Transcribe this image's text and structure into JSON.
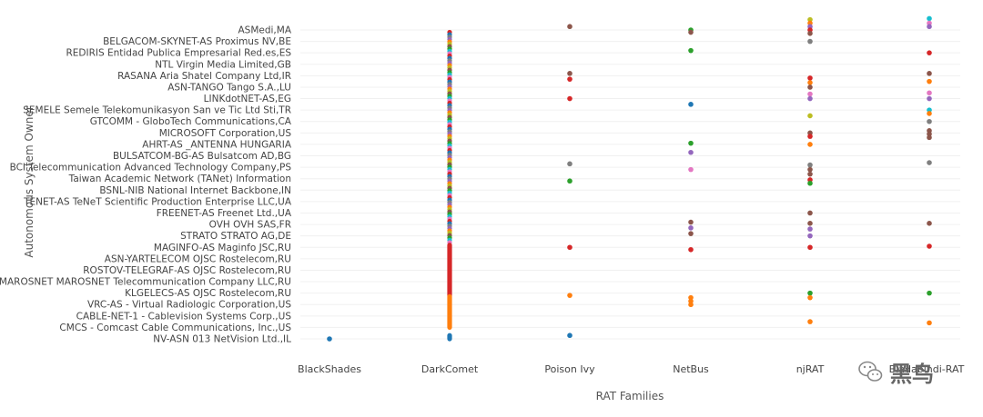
{
  "chart_data": {
    "type": "scatter",
    "title": "",
    "xlabel": "RAT Families",
    "ylabel": "Autonomous System Owner",
    "grid": true,
    "legend": "none",
    "categories": [
      "BlackShades",
      "DarkComet",
      "Poison Ivy",
      "NetBus",
      "njRAT",
      "Bladabindi-RAT"
    ],
    "y_categories": [
      "ASMedi,MA",
      "BELGACOM-SKYNET-AS Proximus NV,BE",
      "REDIRIS Entidad Publica Empresarial Red.es,ES",
      "NTL Virgin Media Limited,GB",
      "RASANA Aria Shatel Company Ltd,IR",
      "ASN-TANGO Tango S.A.,LU",
      "LINKdotNET-AS,EG",
      "SEMELE Semele Telekomunikasyon San ve Tic Ltd Sti,TR",
      "GTCOMM - GloboTech Communications,CA",
      "MICROSOFT Corporation,US",
      "AHRT-AS _ANTENNA HUNGARIA",
      "BULSATCOM-BG-AS Bulsatcom AD,BG",
      "BCI Telecommunication Advanced Technology Company,PS",
      "Taiwan Academic Network (TANet) Information",
      "BSNL-NIB National Internet Backbone,IN",
      "TENET-AS TeNeT Scientific Production Enterprise LLC,UA",
      "FREENET-AS Freenet Ltd.,UA",
      "OVH OVH SAS,FR",
      "STRATO STRATO AG,DE",
      "MAGINFO-AS Maginfo JSC,RU",
      "ASN-YARTELECOM OJSC Rostelecom,RU",
      "ROSTOV-TELEGRAF-AS OJSC Rostelecom,RU",
      "AS-MAROSNET MAROSNET Telecommunication Company LLC,RU",
      "KLGELECS-AS OJSC Rostelecom,RU",
      "VRC-AS - Virtual Radiologic Corporation,US",
      "CABLE-NET-1 - Cablevision Systems Corp.,US",
      "CMCS - Comcast Cable Communications, Inc.,US",
      "NV-ASN 013 NetVision Ltd.,IL"
    ],
    "y_index_range": [
      0,
      27
    ],
    "palette": {
      "blue": "#1f77b4",
      "orange": "#ff7f0e",
      "green": "#2ca02c",
      "red": "#d62728",
      "purple": "#9467bd",
      "brown": "#8c564b",
      "pink": "#e377c2",
      "gray": "#7f7f7f",
      "olive": "#bcbd22",
      "cyan": "#17becf"
    },
    "points": [
      {
        "x": "BlackShades",
        "y": 27.0,
        "color": "#1f77b4"
      },
      {
        "x": "Poison Ivy",
        "y": -0.3,
        "color": "#8c564b"
      },
      {
        "x": "Poison Ivy",
        "y": 3.8,
        "color": "#8c564b"
      },
      {
        "x": "Poison Ivy",
        "y": 4.3,
        "color": "#d62728"
      },
      {
        "x": "Poison Ivy",
        "y": 6.0,
        "color": "#d62728"
      },
      {
        "x": "Poison Ivy",
        "y": 11.7,
        "color": "#7f7f7f"
      },
      {
        "x": "Poison Ivy",
        "y": 13.2,
        "color": "#2ca02c"
      },
      {
        "x": "Poison Ivy",
        "y": 19.0,
        "color": "#d62728"
      },
      {
        "x": "Poison Ivy",
        "y": 23.2,
        "color": "#ff7f0e"
      },
      {
        "x": "Poison Ivy",
        "y": 26.7,
        "color": "#1f77b4"
      },
      {
        "x": "NetBus",
        "y": 0.0,
        "color": "#2ca02c"
      },
      {
        "x": "NetBus",
        "y": 0.2,
        "color": "#8c564b"
      },
      {
        "x": "NetBus",
        "y": 1.8,
        "color": "#2ca02c"
      },
      {
        "x": "NetBus",
        "y": 6.5,
        "color": "#1f77b4"
      },
      {
        "x": "NetBus",
        "y": 9.9,
        "color": "#2ca02c"
      },
      {
        "x": "NetBus",
        "y": 10.7,
        "color": "#9467bd"
      },
      {
        "x": "NetBus",
        "y": 12.2,
        "color": "#e377c2"
      },
      {
        "x": "NetBus",
        "y": 16.8,
        "color": "#8c564b"
      },
      {
        "x": "NetBus",
        "y": 17.3,
        "color": "#9467bd"
      },
      {
        "x": "NetBus",
        "y": 17.8,
        "color": "#8c564b"
      },
      {
        "x": "NetBus",
        "y": 19.2,
        "color": "#d62728"
      },
      {
        "x": "NetBus",
        "y": 23.4,
        "color": "#ff7f0e"
      },
      {
        "x": "NetBus",
        "y": 23.7,
        "color": "#ff7f0e"
      },
      {
        "x": "NetBus",
        "y": 24.0,
        "color": "#ff7f0e"
      },
      {
        "x": "njRAT",
        "y": -0.9,
        "color": "#bcbd22"
      },
      {
        "x": "njRAT",
        "y": -0.6,
        "color": "#ff7f0e"
      },
      {
        "x": "njRAT",
        "y": -0.3,
        "color": "#9467bd"
      },
      {
        "x": "njRAT",
        "y": 0.0,
        "color": "#d62728"
      },
      {
        "x": "njRAT",
        "y": 0.3,
        "color": "#8c564b"
      },
      {
        "x": "njRAT",
        "y": 1.0,
        "color": "#7f7f7f"
      },
      {
        "x": "njRAT",
        "y": 4.2,
        "color": "#d62728"
      },
      {
        "x": "njRAT",
        "y": 4.6,
        "color": "#ff7f0e"
      },
      {
        "x": "njRAT",
        "y": 5.0,
        "color": "#8c564b"
      },
      {
        "x": "njRAT",
        "y": 5.6,
        "color": "#e377c2"
      },
      {
        "x": "njRAT",
        "y": 6.0,
        "color": "#9467bd"
      },
      {
        "x": "njRAT",
        "y": 7.5,
        "color": "#bcbd22"
      },
      {
        "x": "njRAT",
        "y": 9.0,
        "color": "#8c564b"
      },
      {
        "x": "njRAT",
        "y": 9.3,
        "color": "#d62728"
      },
      {
        "x": "njRAT",
        "y": 10.0,
        "color": "#ff7f0e"
      },
      {
        "x": "njRAT",
        "y": 11.8,
        "color": "#7f7f7f"
      },
      {
        "x": "njRAT",
        "y": 12.2,
        "color": "#8c564b"
      },
      {
        "x": "njRAT",
        "y": 12.6,
        "color": "#8c564b"
      },
      {
        "x": "njRAT",
        "y": 13.1,
        "color": "#d62728"
      },
      {
        "x": "njRAT",
        "y": 13.4,
        "color": "#2ca02c"
      },
      {
        "x": "njRAT",
        "y": 16.0,
        "color": "#8c564b"
      },
      {
        "x": "njRAT",
        "y": 16.9,
        "color": "#8c564b"
      },
      {
        "x": "njRAT",
        "y": 17.4,
        "color": "#9467bd"
      },
      {
        "x": "njRAT",
        "y": 18.0,
        "color": "#9467bd"
      },
      {
        "x": "njRAT",
        "y": 19.0,
        "color": "#d62728"
      },
      {
        "x": "njRAT",
        "y": 23.0,
        "color": "#2ca02c"
      },
      {
        "x": "njRAT",
        "y": 23.4,
        "color": "#ff7f0e"
      },
      {
        "x": "njRAT",
        "y": 25.5,
        "color": "#ff7f0e"
      },
      {
        "x": "Bladabindi-RAT",
        "y": -1.0,
        "color": "#17becf"
      },
      {
        "x": "Bladabindi-RAT",
        "y": -0.6,
        "color": "#e377c2"
      },
      {
        "x": "Bladabindi-RAT",
        "y": -0.3,
        "color": "#9467bd"
      },
      {
        "x": "Bladabindi-RAT",
        "y": 2.0,
        "color": "#d62728"
      },
      {
        "x": "Bladabindi-RAT",
        "y": 3.8,
        "color": "#8c564b"
      },
      {
        "x": "Bladabindi-RAT",
        "y": 4.5,
        "color": "#ff7f0e"
      },
      {
        "x": "Bladabindi-RAT",
        "y": 5.5,
        "color": "#e377c2"
      },
      {
        "x": "Bladabindi-RAT",
        "y": 6.0,
        "color": "#9467bd"
      },
      {
        "x": "Bladabindi-RAT",
        "y": 7.0,
        "color": "#17becf"
      },
      {
        "x": "Bladabindi-RAT",
        "y": 7.3,
        "color": "#ff7f0e"
      },
      {
        "x": "Bladabindi-RAT",
        "y": 8.0,
        "color": "#7f7f7f"
      },
      {
        "x": "Bladabindi-RAT",
        "y": 8.8,
        "color": "#8c564b"
      },
      {
        "x": "Bladabindi-RAT",
        "y": 9.1,
        "color": "#8c564b"
      },
      {
        "x": "Bladabindi-RAT",
        "y": 9.4,
        "color": "#8c564b"
      },
      {
        "x": "Bladabindi-RAT",
        "y": 11.6,
        "color": "#7f7f7f"
      },
      {
        "x": "Bladabindi-RAT",
        "y": 16.9,
        "color": "#8c564b"
      },
      {
        "x": "Bladabindi-RAT",
        "y": 18.9,
        "color": "#d62728"
      },
      {
        "x": "Bladabindi-RAT",
        "y": 23.0,
        "color": "#2ca02c"
      },
      {
        "x": "Bladabindi-RAT",
        "y": 25.6,
        "color": "#ff7f0e"
      }
    ],
    "strips": [
      {
        "x": "DarkComet",
        "y_from": 0.2,
        "y_to": 18.6,
        "note": "dense multi-color points",
        "colors": [
          "#1f77b4",
          "#ff7f0e",
          "#2ca02c",
          "#d62728",
          "#9467bd",
          "#8c564b",
          "#e377c2",
          "#7f7f7f",
          "#bcbd22",
          "#17becf"
        ]
      },
      {
        "x": "DarkComet",
        "y_from": 18.8,
        "y_to": 23.2,
        "color": "#d62728"
      },
      {
        "x": "DarkComet",
        "y_from": 23.3,
        "y_to": 26.0,
        "color": "#ff7f0e"
      },
      {
        "x": "DarkComet",
        "y_from": 26.7,
        "y_to": 27.0,
        "color": "#1f77b4"
      }
    ]
  },
  "watermark": {
    "label": "黑鸟",
    "icon": "wechat-icon"
  }
}
